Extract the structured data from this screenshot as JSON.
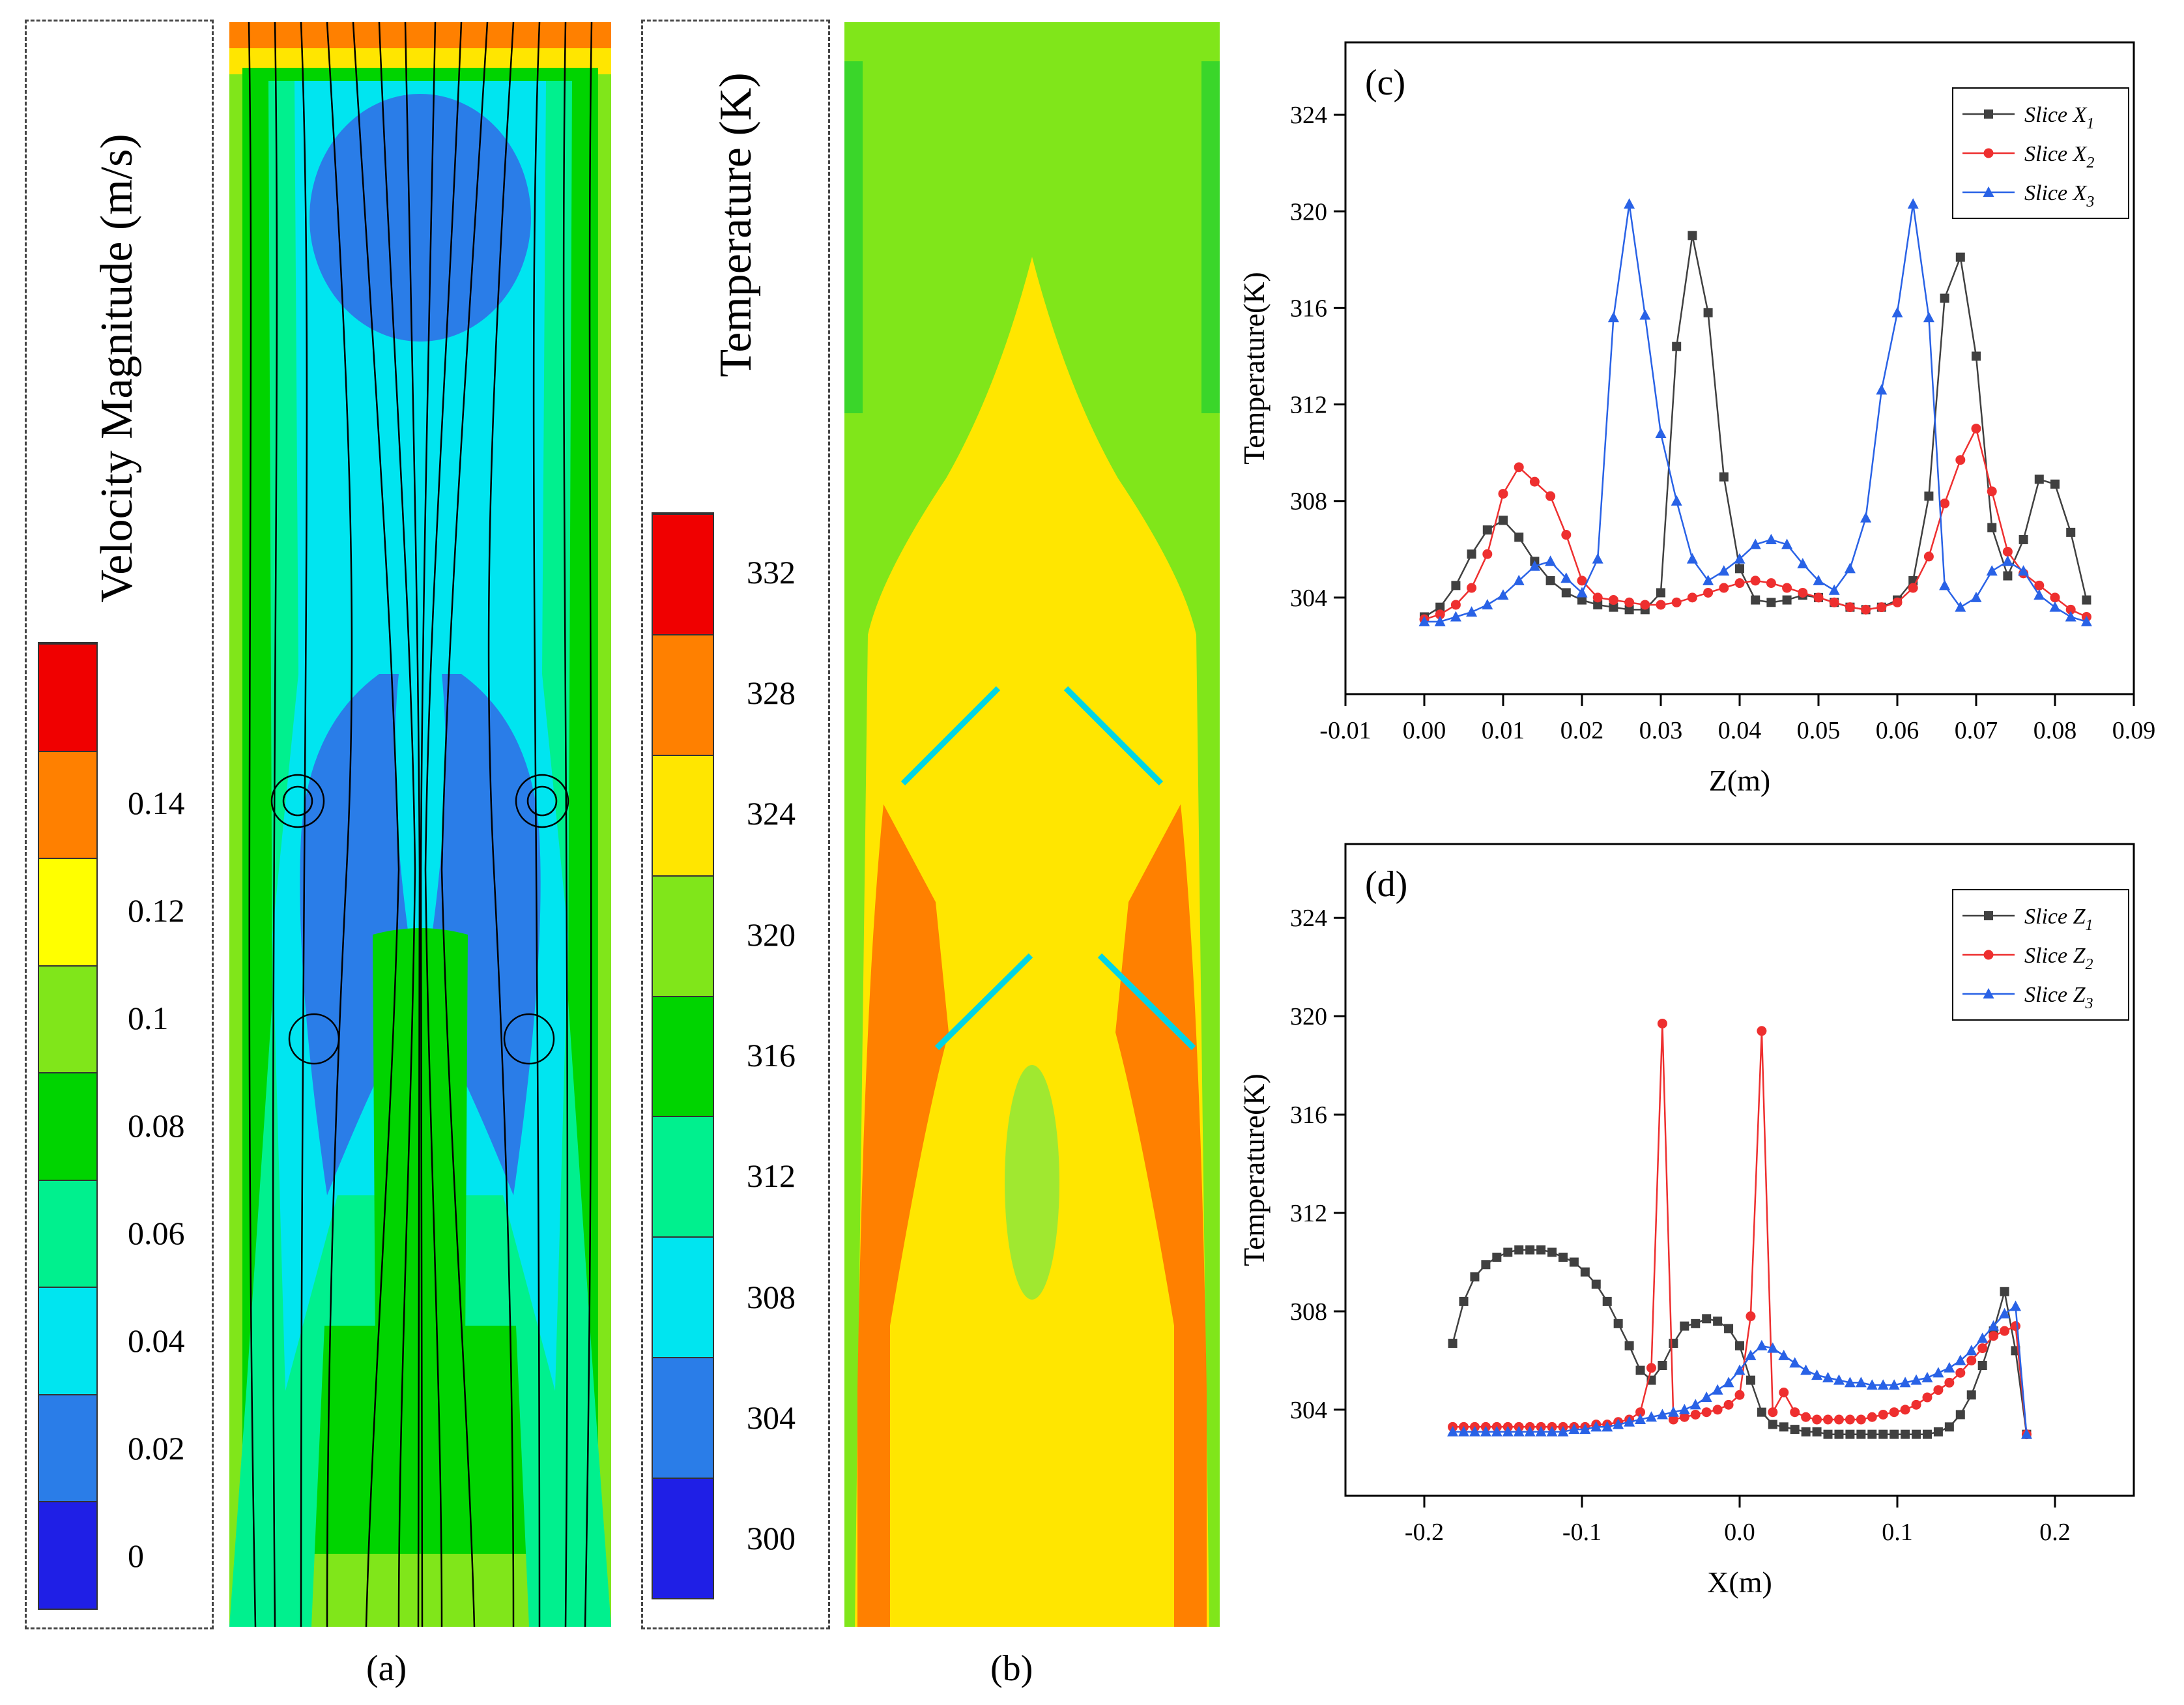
{
  "panel_a": {
    "title": "Velocity Magnitude (m/s)",
    "colorbar": {
      "colors": [
        "#1f1fe6",
        "#2a7de8",
        "#00e5f0",
        "#00f08e",
        "#00d400",
        "#80e61a",
        "#ffff00",
        "#ff8000",
        "#f00000"
      ],
      "ticks": [
        "0",
        "0.02",
        "0.04",
        "0.06",
        "0.08",
        "0.1",
        "0.12",
        "0.14"
      ]
    },
    "label": "(a)"
  },
  "panel_b": {
    "title": "Temperature (K)",
    "colorbar": {
      "colors": [
        "#1f1fe6",
        "#2a7de8",
        "#00e5f0",
        "#00f08e",
        "#00d400",
        "#80e61a",
        "#ffe600",
        "#ff8000",
        "#f00000"
      ],
      "ticks": [
        "300",
        "304",
        "308",
        "312",
        "316",
        "320",
        "324",
        "328",
        "332"
      ]
    },
    "label": "(b)"
  },
  "chart_data": [
    {
      "type": "line",
      "panel_label": "(c)",
      "xlabel": "Z(m)",
      "ylabel": "Temperature(K)",
      "xlim": [
        -0.01,
        0.09
      ],
      "ylim": [
        300,
        327
      ],
      "xticks": [
        "-0.01",
        "0.00",
        "0.01",
        "0.02",
        "0.03",
        "0.04",
        "0.05",
        "0.06",
        "0.07",
        "0.08",
        "0.09"
      ],
      "xtick_values": [
        -0.01,
        0.0,
        0.01,
        0.02,
        0.03,
        0.04,
        0.05,
        0.06,
        0.07,
        0.08,
        0.09
      ],
      "yticks": [
        "304",
        "308",
        "312",
        "316",
        "320",
        "324"
      ],
      "ytick_values": [
        304,
        308,
        312,
        316,
        320,
        324
      ],
      "legend_position": "top-right",
      "series": [
        {
          "name": "Slice X1",
          "name_main": "Slice X",
          "name_sub": "1",
          "color": "#404040",
          "marker": "square",
          "x": [
            0.0,
            0.002,
            0.004,
            0.006,
            0.008,
            0.01,
            0.012,
            0.014,
            0.016,
            0.018,
            0.02,
            0.022,
            0.024,
            0.026,
            0.028,
            0.03,
            0.032,
            0.034,
            0.036,
            0.038,
            0.04,
            0.042,
            0.044,
            0.046,
            0.048,
            0.05,
            0.052,
            0.054,
            0.056,
            0.058,
            0.06,
            0.062,
            0.064,
            0.066,
            0.068,
            0.07,
            0.072,
            0.074,
            0.076,
            0.078,
            0.08,
            0.082,
            0.084
          ],
          "y": [
            303.2,
            303.6,
            304.5,
            305.8,
            306.8,
            307.2,
            306.5,
            305.5,
            304.7,
            304.2,
            303.9,
            303.7,
            303.6,
            303.5,
            303.5,
            304.2,
            314.4,
            319.0,
            315.8,
            309.0,
            305.2,
            303.9,
            303.8,
            303.9,
            304.1,
            304.0,
            303.8,
            303.6,
            303.5,
            303.6,
            303.9,
            304.7,
            308.2,
            316.4,
            318.1,
            314.0,
            306.9,
            304.9,
            306.4,
            308.9,
            308.7,
            306.7,
            303.9
          ]
        },
        {
          "name": "Slice X2",
          "name_main": "Slice X",
          "name_sub": "2",
          "color": "#ee2f2f",
          "marker": "circle",
          "x": [
            0.0,
            0.002,
            0.004,
            0.006,
            0.008,
            0.01,
            0.012,
            0.014,
            0.016,
            0.018,
            0.02,
            0.022,
            0.024,
            0.026,
            0.028,
            0.03,
            0.032,
            0.034,
            0.036,
            0.038,
            0.04,
            0.042,
            0.044,
            0.046,
            0.048,
            0.05,
            0.052,
            0.054,
            0.056,
            0.058,
            0.06,
            0.062,
            0.064,
            0.066,
            0.068,
            0.07,
            0.072,
            0.074,
            0.076,
            0.078,
            0.08,
            0.082,
            0.084
          ],
          "y": [
            303.1,
            303.3,
            303.7,
            304.4,
            305.8,
            308.3,
            309.4,
            308.8,
            308.2,
            306.6,
            304.7,
            304.0,
            303.9,
            303.8,
            303.7,
            303.7,
            303.8,
            304.0,
            304.2,
            304.4,
            304.6,
            304.7,
            304.6,
            304.4,
            304.2,
            304.0,
            303.8,
            303.6,
            303.5,
            303.6,
            303.8,
            304.4,
            305.7,
            307.9,
            309.7,
            311.0,
            308.4,
            305.9,
            305.0,
            304.5,
            304.0,
            303.5,
            303.2
          ]
        },
        {
          "name": "Slice X3",
          "name_main": "Slice X",
          "name_sub": "3",
          "color": "#2962e6",
          "marker": "triangle",
          "x": [
            0.0,
            0.002,
            0.004,
            0.006,
            0.008,
            0.01,
            0.012,
            0.014,
            0.016,
            0.018,
            0.02,
            0.022,
            0.024,
            0.026,
            0.028,
            0.03,
            0.032,
            0.034,
            0.036,
            0.038,
            0.04,
            0.042,
            0.044,
            0.046,
            0.048,
            0.05,
            0.052,
            0.054,
            0.056,
            0.058,
            0.06,
            0.062,
            0.064,
            0.066,
            0.068,
            0.07,
            0.072,
            0.074,
            0.076,
            0.078,
            0.08,
            0.082,
            0.084
          ],
          "y": [
            303.0,
            303.0,
            303.2,
            303.4,
            303.7,
            304.1,
            304.7,
            305.3,
            305.5,
            304.8,
            304.2,
            305.6,
            315.6,
            320.3,
            315.7,
            310.8,
            308.0,
            305.6,
            304.7,
            305.1,
            305.6,
            306.2,
            306.4,
            306.2,
            305.4,
            304.7,
            304.3,
            305.2,
            307.3,
            312.6,
            315.8,
            320.3,
            315.6,
            304.5,
            303.6,
            304.0,
            305.1,
            305.5,
            305.1,
            304.1,
            303.6,
            303.2,
            303.0
          ]
        }
      ]
    },
    {
      "type": "line",
      "panel_label": "(d)",
      "xlabel": "X(m)",
      "ylabel": "Temperature(K)",
      "xlim": [
        -0.25,
        0.25
      ],
      "ylim": [
        300.5,
        327
      ],
      "xticks": [
        "-0.2",
        "-0.1",
        "0.0",
        "0.1",
        "0.2"
      ],
      "xtick_values": [
        -0.2,
        -0.1,
        0.0,
        0.1,
        0.2
      ],
      "yticks": [
        "304",
        "308",
        "312",
        "316",
        "320",
        "324"
      ],
      "ytick_values": [
        304,
        308,
        312,
        316,
        320,
        324
      ],
      "legend_position": "top-right",
      "series": [
        {
          "name": "Slice Z1",
          "name_main": "Slice Z",
          "name_sub": "1",
          "color": "#404040",
          "marker": "square",
          "x": [
            -0.182,
            -0.175,
            -0.168,
            -0.161,
            -0.154,
            -0.147,
            -0.14,
            -0.133,
            -0.126,
            -0.119,
            -0.112,
            -0.105,
            -0.098,
            -0.091,
            -0.084,
            -0.077,
            -0.07,
            -0.063,
            -0.056,
            -0.049,
            -0.042,
            -0.035,
            -0.028,
            -0.021,
            -0.014,
            -0.007,
            0.0,
            0.007,
            0.014,
            0.021,
            0.028,
            0.035,
            0.042,
            0.049,
            0.056,
            0.063,
            0.07,
            0.077,
            0.084,
            0.091,
            0.098,
            0.105,
            0.112,
            0.119,
            0.126,
            0.133,
            0.14,
            0.147,
            0.154,
            0.161,
            0.168,
            0.175,
            0.182
          ],
          "y": [
            306.7,
            308.4,
            309.4,
            309.9,
            310.2,
            310.4,
            310.5,
            310.5,
            310.5,
            310.4,
            310.2,
            310.0,
            309.6,
            309.1,
            308.4,
            307.5,
            306.6,
            305.6,
            305.2,
            305.8,
            306.7,
            307.4,
            307.5,
            307.7,
            307.6,
            307.3,
            306.6,
            305.2,
            303.9,
            303.4,
            303.3,
            303.2,
            303.1,
            303.1,
            303.0,
            303.0,
            303.0,
            303.0,
            303.0,
            303.0,
            303.0,
            303.0,
            303.0,
            303.0,
            303.1,
            303.3,
            303.8,
            304.6,
            305.8,
            307.2,
            308.8,
            306.4,
            303.0
          ]
        },
        {
          "name": "Slice Z2",
          "name_main": "Slice Z",
          "name_sub": "2",
          "color": "#ee2f2f",
          "marker": "circle",
          "x": [
            -0.182,
            -0.175,
            -0.168,
            -0.161,
            -0.154,
            -0.147,
            -0.14,
            -0.133,
            -0.126,
            -0.119,
            -0.112,
            -0.105,
            -0.098,
            -0.091,
            -0.084,
            -0.077,
            -0.07,
            -0.063,
            -0.056,
            -0.049,
            -0.042,
            -0.035,
            -0.028,
            -0.021,
            -0.014,
            -0.007,
            0.0,
            0.007,
            0.014,
            0.021,
            0.028,
            0.035,
            0.042,
            0.049,
            0.056,
            0.063,
            0.07,
            0.077,
            0.084,
            0.091,
            0.098,
            0.105,
            0.112,
            0.119,
            0.126,
            0.133,
            0.14,
            0.147,
            0.154,
            0.161,
            0.168,
            0.175,
            0.182
          ],
          "y": [
            303.3,
            303.3,
            303.3,
            303.3,
            303.3,
            303.3,
            303.3,
            303.3,
            303.3,
            303.3,
            303.3,
            303.3,
            303.3,
            303.4,
            303.4,
            303.5,
            303.6,
            303.9,
            305.7,
            319.7,
            303.6,
            303.7,
            303.8,
            303.9,
            304.0,
            304.2,
            304.6,
            307.8,
            319.4,
            303.9,
            304.7,
            303.9,
            303.7,
            303.6,
            303.6,
            303.6,
            303.6,
            303.6,
            303.7,
            303.8,
            303.9,
            304.0,
            304.2,
            304.5,
            304.8,
            305.1,
            305.5,
            306.0,
            306.5,
            307.0,
            307.2,
            307.4,
            303.0
          ]
        },
        {
          "name": "Slice Z3",
          "name_main": "Slice Z",
          "name_sub": "3",
          "color": "#2962e6",
          "marker": "triangle",
          "x": [
            -0.182,
            -0.175,
            -0.168,
            -0.161,
            -0.154,
            -0.147,
            -0.14,
            -0.133,
            -0.126,
            -0.119,
            -0.112,
            -0.105,
            -0.098,
            -0.091,
            -0.084,
            -0.077,
            -0.07,
            -0.063,
            -0.056,
            -0.049,
            -0.042,
            -0.035,
            -0.028,
            -0.021,
            -0.014,
            -0.007,
            0.0,
            0.007,
            0.014,
            0.021,
            0.028,
            0.035,
            0.042,
            0.049,
            0.056,
            0.063,
            0.07,
            0.077,
            0.084,
            0.091,
            0.098,
            0.105,
            0.112,
            0.119,
            0.126,
            0.133,
            0.14,
            0.147,
            0.154,
            0.161,
            0.168,
            0.175,
            0.182
          ],
          "y": [
            303.1,
            303.1,
            303.1,
            303.1,
            303.1,
            303.1,
            303.1,
            303.1,
            303.1,
            303.1,
            303.1,
            303.2,
            303.2,
            303.3,
            303.3,
            303.4,
            303.5,
            303.6,
            303.7,
            303.8,
            303.9,
            304.0,
            304.2,
            304.5,
            304.8,
            305.1,
            305.6,
            306.2,
            306.6,
            306.5,
            306.2,
            305.9,
            305.6,
            305.4,
            305.3,
            305.2,
            305.1,
            305.1,
            305.0,
            305.0,
            305.0,
            305.1,
            305.2,
            305.3,
            305.5,
            305.7,
            306.0,
            306.4,
            306.9,
            307.4,
            307.9,
            308.2,
            303.0
          ]
        }
      ]
    }
  ]
}
